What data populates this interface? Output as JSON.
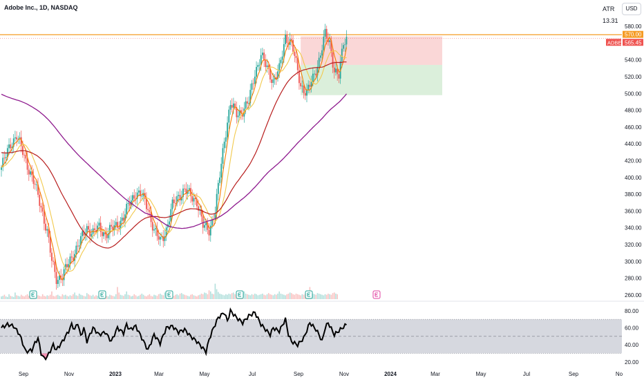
{
  "header": {
    "symbol_title": "Adobe Inc., 1D, NASDAQ",
    "currency_button": "USD",
    "indicator_name": "ATR",
    "indicator_value": "13.31"
  },
  "colors": {
    "candle_up": "#26a69a",
    "candle_down": "#ef5350",
    "ma_fast": "#f57c00",
    "ma_mid": "#f2c94c",
    "ma_slow": "#b71c1c",
    "ma_long": "#8e1a8e",
    "target_zone": "#f8c9c9",
    "stop_zone": "#cfe9cf",
    "horizontal_line": "#f59b23",
    "rsi_band": "#d1d4dc",
    "rsi_line": "#000000"
  },
  "chart_data": [
    {
      "type": "candlestick",
      "title": "Adobe Inc., 1D, NASDAQ",
      "ylim": [
        255,
        585
      ],
      "y_ticks": [
        260,
        280,
        300,
        320,
        340,
        360,
        380,
        400,
        420,
        440,
        460,
        480,
        500,
        520,
        540,
        560,
        580
      ],
      "x_ticks": [
        "Sep",
        "Nov",
        "2023",
        "Mar",
        "May",
        "Jul",
        "Sep",
        "Nov",
        "2024",
        "Mar",
        "May",
        "Jul",
        "Sep",
        "No"
      ],
      "price_labels": [
        {
          "label": "570.00",
          "value": 570.0
        },
        {
          "label": "ADBE",
          "value": 565.45
        },
        {
          "label": "565.45",
          "value": 565.45
        }
      ],
      "horizontal_line": 570.0,
      "position_tool": {
        "entry": 534,
        "target": 568,
        "stop": 498
      },
      "price_anchors": [
        [
          0,
          412
        ],
        [
          6,
          440
        ],
        [
          10,
          450
        ],
        [
          14,
          430
        ],
        [
          18,
          410
        ],
        [
          22,
          390
        ],
        [
          26,
          365
        ],
        [
          30,
          335
        ],
        [
          33,
          300
        ],
        [
          36,
          280
        ],
        [
          40,
          282
        ],
        [
          44,
          298
        ],
        [
          48,
          312
        ],
        [
          52,
          325
        ],
        [
          56,
          340
        ],
        [
          60,
          334
        ],
        [
          64,
          340
        ],
        [
          68,
          332
        ],
        [
          72,
          338
        ],
        [
          76,
          344
        ],
        [
          80,
          352
        ],
        [
          84,
          370
        ],
        [
          88,
          382
        ],
        [
          92,
          378
        ],
        [
          96,
          364
        ],
        [
          100,
          336
        ],
        [
          104,
          324
        ],
        [
          108,
          338
        ],
        [
          112,
          366
        ],
        [
          116,
          378
        ],
        [
          120,
          385
        ],
        [
          124,
          378
        ],
        [
          128,
          372
        ],
        [
          132,
          342
        ],
        [
          136,
          338
        ],
        [
          140,
          360
        ],
        [
          143,
          402
        ],
        [
          146,
          445
        ],
        [
          150,
          488
        ],
        [
          154,
          475
        ],
        [
          158,
          480
        ],
        [
          162,
          490
        ],
        [
          166,
          525
        ],
        [
          170,
          545
        ],
        [
          174,
          530
        ],
        [
          178,
          515
        ],
        [
          182,
          528
        ],
        [
          186,
          568
        ],
        [
          190,
          560
        ],
        [
          193,
          535
        ],
        [
          196,
          510
        ],
        [
          200,
          500
        ],
        [
          204,
          518
        ],
        [
          208,
          540
        ],
        [
          212,
          570
        ],
        [
          215,
          560
        ],
        [
          218,
          528
        ],
        [
          221,
          520
        ],
        [
          224,
          560
        ],
        [
          226,
          566
        ]
      ],
      "volume_relative_heights": [
        5,
        6,
        8,
        5,
        4,
        9,
        6,
        5,
        4,
        12,
        7,
        6,
        5,
        8,
        6,
        5,
        7,
        9,
        6,
        5,
        4,
        6,
        8,
        10,
        7,
        6,
        5,
        9,
        6,
        5,
        7,
        6,
        8,
        14,
        6,
        5,
        7,
        8,
        6,
        5,
        9,
        7,
        8,
        6,
        5,
        7,
        6,
        9,
        12,
        7,
        6,
        10,
        8,
        7,
        6,
        5,
        11,
        9,
        7,
        6,
        8,
        5,
        7,
        6,
        9,
        8,
        10,
        12,
        7,
        6,
        5,
        8,
        7,
        6,
        5,
        9,
        22,
        12,
        8,
        7,
        6,
        9,
        14,
        8,
        7,
        5,
        6,
        9,
        7,
        5,
        6,
        8,
        10,
        8,
        6,
        5,
        7,
        9,
        6,
        5,
        8,
        7,
        6,
        9,
        10,
        8,
        7,
        12,
        9,
        8,
        6,
        5,
        7,
        6,
        8,
        9,
        7,
        10,
        11,
        9,
        8,
        7,
        6,
        5,
        8,
        9,
        7,
        6,
        5,
        7,
        8,
        10,
        9,
        12,
        11,
        9,
        16,
        14,
        10,
        9,
        28,
        18,
        13,
        10,
        9,
        8,
        7,
        9,
        8,
        10,
        9,
        11,
        12,
        9,
        8,
        10,
        9,
        11,
        12,
        14,
        10,
        9,
        8,
        7,
        9,
        8,
        10,
        9,
        7,
        8,
        9,
        10,
        8,
        7,
        9,
        11,
        9,
        8,
        7,
        9,
        8,
        10,
        14,
        10,
        9,
        8,
        7,
        9,
        10,
        12,
        11,
        9,
        8,
        10,
        9,
        8,
        7,
        9,
        8,
        10,
        9,
        8,
        22,
        14,
        10,
        9,
        8,
        11,
        10,
        9,
        8,
        7,
        9,
        8,
        10,
        9,
        8,
        11,
        12,
        10,
        9
      ]
    },
    {
      "type": "line",
      "indicator": "RSI",
      "ylim": [
        15,
        88
      ],
      "y_ticks": [
        20,
        40,
        60,
        80
      ],
      "band": [
        30,
        70
      ],
      "midline": 50,
      "rsi_anchors": [
        [
          0,
          60
        ],
        [
          4,
          64
        ],
        [
          8,
          62
        ],
        [
          12,
          52
        ],
        [
          16,
          32
        ],
        [
          20,
          34
        ],
        [
          22,
          42
        ],
        [
          24,
          48
        ],
        [
          26,
          30
        ],
        [
          28,
          24
        ],
        [
          30,
          26
        ],
        [
          34,
          40
        ],
        [
          36,
          34
        ],
        [
          40,
          44
        ],
        [
          44,
          56
        ],
        [
          46,
          64
        ],
        [
          48,
          58
        ],
        [
          50,
          66
        ],
        [
          52,
          50
        ],
        [
          54,
          60
        ],
        [
          56,
          44
        ],
        [
          60,
          60
        ],
        [
          64,
          52
        ],
        [
          68,
          55
        ],
        [
          72,
          44
        ],
        [
          76,
          60
        ],
        [
          80,
          54
        ],
        [
          82,
          64
        ],
        [
          84,
          58
        ],
        [
          88,
          62
        ],
        [
          92,
          48
        ],
        [
          96,
          34
        ],
        [
          100,
          52
        ],
        [
          104,
          42
        ],
        [
          108,
          60
        ],
        [
          112,
          62
        ],
        [
          116,
          55
        ],
        [
          120,
          58
        ],
        [
          124,
          50
        ],
        [
          128,
          44
        ],
        [
          130,
          40
        ],
        [
          134,
          32
        ],
        [
          136,
          46
        ],
        [
          138,
          56
        ],
        [
          142,
          72
        ],
        [
          146,
          78
        ],
        [
          148,
          68
        ],
        [
          150,
          80
        ],
        [
          154,
          72
        ],
        [
          158,
          66
        ],
        [
          162,
          74
        ],
        [
          166,
          78
        ],
        [
          170,
          64
        ],
        [
          174,
          56
        ],
        [
          176,
          52
        ],
        [
          178,
          60
        ],
        [
          182,
          56
        ],
        [
          186,
          70
        ],
        [
          188,
          52
        ],
        [
          190,
          44
        ],
        [
          194,
          40
        ],
        [
          198,
          48
        ],
        [
          202,
          66
        ],
        [
          206,
          58
        ],
        [
          208,
          52
        ],
        [
          210,
          44
        ],
        [
          212,
          60
        ],
        [
          214,
          66
        ],
        [
          218,
          52
        ],
        [
          222,
          58
        ],
        [
          226,
          64
        ]
      ]
    }
  ]
}
